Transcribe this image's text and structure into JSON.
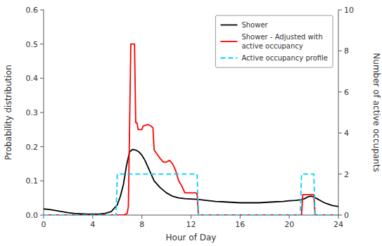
{
  "chart_data": {
    "type": "line",
    "xlabel": "Hour of Day",
    "ylabel": "Probability distribution",
    "y2label": "Number of active occupants",
    "xlim": [
      0,
      24
    ],
    "xticks": [
      0,
      4,
      8,
      12,
      16,
      20,
      24
    ],
    "ylim": [
      0,
      0.6
    ],
    "yticks": [
      {
        "value": 0.0,
        "label": "0.0"
      },
      0.1,
      0.2,
      0.3,
      0.4,
      0.5,
      0.6
    ],
    "y2lim": [
      0,
      10
    ],
    "y2ticks": [
      0,
      2,
      4,
      6,
      8,
      10
    ],
    "grid": false,
    "legend": "upper right",
    "series": [
      {
        "name": "Shower",
        "color": "#000000",
        "line_style": "solid",
        "axis": "y",
        "x": [
          0,
          0.5,
          1,
          1.5,
          2,
          2.5,
          3,
          3.5,
          4,
          4.5,
          5,
          5.5,
          6,
          6.25,
          6.5,
          6.75,
          7.0,
          7.25,
          7.5,
          7.75,
          8.0,
          8.25,
          8.5,
          8.75,
          9.0,
          9.5,
          10.0,
          10.5,
          11.0,
          11.5,
          12.0,
          12.5,
          13.0,
          13.5,
          14,
          14.5,
          15,
          15.5,
          16,
          16.5,
          17,
          17.5,
          18,
          18.5,
          19,
          19.5,
          20,
          20.5,
          21,
          21.25,
          21.5,
          21.75,
          22.0,
          22.25,
          22.5,
          22.75,
          23,
          23.5,
          24
        ],
        "values": [
          0.018,
          0.016,
          0.013,
          0.01,
          0.007,
          0.005,
          0.004,
          0.003,
          0.003,
          0.003,
          0.005,
          0.01,
          0.03,
          0.055,
          0.09,
          0.145,
          0.185,
          0.192,
          0.19,
          0.185,
          0.175,
          0.16,
          0.14,
          0.12,
          0.1,
          0.08,
          0.065,
          0.055,
          0.05,
          0.048,
          0.047,
          0.046,
          0.044,
          0.042,
          0.04,
          0.039,
          0.038,
          0.037,
          0.036,
          0.036,
          0.036,
          0.036,
          0.037,
          0.038,
          0.039,
          0.04,
          0.042,
          0.043,
          0.045,
          0.048,
          0.053,
          0.055,
          0.053,
          0.048,
          0.043,
          0.038,
          0.034,
          0.028,
          0.025
        ]
      },
      {
        "name": "Shower - Adjusted with\nactive occupancy",
        "color": "#ff0000",
        "line_style": "solid",
        "axis": "y",
        "x": [
          0.0,
          6.5,
          6.8,
          6.9,
          7.0,
          7.1,
          7.4,
          7.5,
          7.6,
          7.7,
          8.0,
          8.1,
          8.5,
          8.75,
          8.9,
          9.0,
          9.1,
          9.5,
          9.75,
          10.0,
          10.25,
          10.5,
          10.75,
          11.0,
          11.25,
          11.5,
          12.4,
          12.5,
          12.6,
          13.0,
          21.0,
          21.1,
          21.5,
          22.0,
          22.1,
          24.0
        ],
        "values": [
          0.0,
          0.0,
          0.005,
          0.025,
          0.26,
          0.5,
          0.5,
          0.27,
          0.27,
          0.25,
          0.25,
          0.26,
          0.265,
          0.26,
          0.255,
          0.19,
          0.185,
          0.165,
          0.155,
          0.155,
          0.16,
          0.15,
          0.13,
          0.1,
          0.085,
          0.065,
          0.065,
          0.06,
          0.0,
          0.0,
          0.0,
          0.06,
          0.06,
          0.06,
          0.0,
          0.0
        ]
      },
      {
        "name": "Active occupancy profile",
        "color": "#00cfff",
        "line_style": "dashed",
        "axis": "y2",
        "x": [
          0.0,
          5.9,
          6.0,
          7.0,
          8.0,
          11.5,
          12.0,
          12.5,
          12.6,
          20.9,
          21.0,
          22.0,
          22.1,
          24.0
        ],
        "values": [
          0.0,
          0.0,
          2.0,
          2.0,
          2.0,
          2.0,
          2.0,
          2.0,
          0.0,
          0.0,
          2.0,
          2.0,
          0.0,
          0.0
        ]
      }
    ]
  }
}
